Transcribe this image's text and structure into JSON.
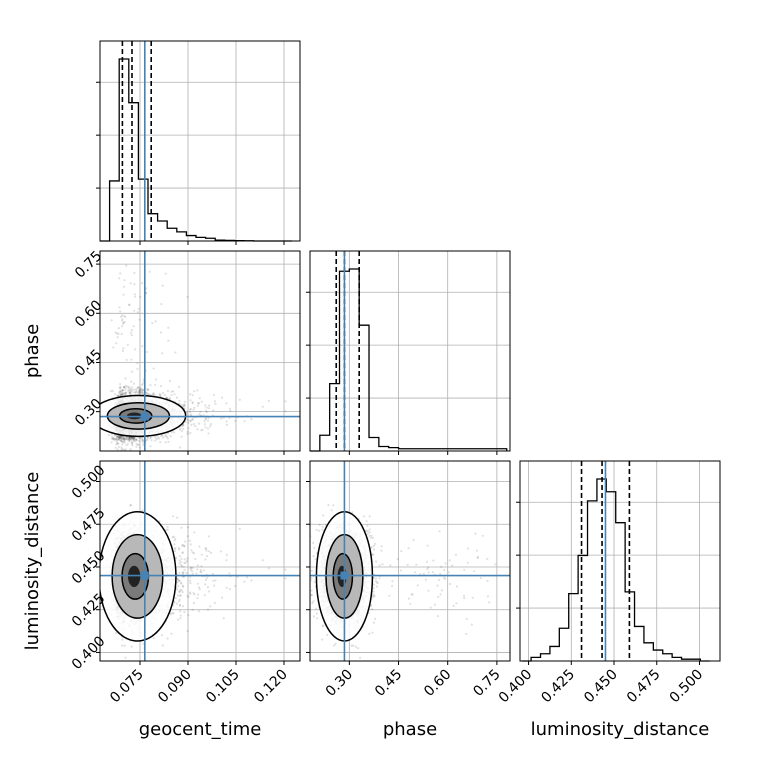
{
  "chart_data": {
    "type": "corner",
    "parameters": [
      "geocent_time",
      "phase",
      "luminosity_distance"
    ],
    "truths": {
      "geocent_time": 0.0765,
      "phase": 0.285,
      "luminosity_distance": 0.445
    },
    "quantiles": {
      "geocent_time": [
        0.0695,
        0.0725,
        0.0785
      ],
      "phase": [
        0.26,
        0.285,
        0.33
      ],
      "luminosity_distance": [
        0.431,
        0.443,
        0.459
      ]
    },
    "ranges": {
      "geocent_time": [
        0.0625,
        0.125
      ],
      "phase": [
        0.18,
        0.79
      ],
      "luminosity_distance": [
        0.395,
        0.512
      ]
    },
    "ticks": {
      "geocent_time": {
        "values": [
          0.075,
          0.09,
          0.105,
          0.12
        ],
        "labels": [
          "0.075",
          "0.090",
          "0.105",
          "0.120"
        ]
      },
      "phase": {
        "values": [
          0.3,
          0.45,
          0.6,
          0.75
        ],
        "labels": [
          "0.30",
          "0.45",
          "0.60",
          "0.75"
        ]
      },
      "luminosity_distance": {
        "values": [
          0.4,
          0.425,
          0.45,
          0.475,
          0.5
        ],
        "labels": [
          "0.400",
          "0.425",
          "0.450",
          "0.475",
          "0.500"
        ]
      }
    },
    "histograms": {
      "geocent_time": {
        "edges": [
          0.0625,
          0.0655,
          0.0685,
          0.0715,
          0.0745,
          0.0775,
          0.0805,
          0.0835,
          0.0865,
          0.0895,
          0.0925,
          0.0955,
          0.0985,
          0.1015,
          0.1045,
          0.1075,
          0.1105,
          0.1135,
          0.1165,
          0.1195,
          0.1225
        ],
        "counts": [
          0.0,
          0.33,
          1.0,
          0.76,
          0.34,
          0.15,
          0.11,
          0.07,
          0.05,
          0.03,
          0.02,
          0.015,
          0.005,
          0.003,
          0.002,
          0.001,
          0.0,
          0.0,
          0.0,
          0.0
        ]
      },
      "phase": {
        "edges": [
          0.18,
          0.21,
          0.24,
          0.27,
          0.3,
          0.33,
          0.36,
          0.39,
          0.42,
          0.45,
          0.48,
          0.51,
          0.54,
          0.57,
          0.6,
          0.63,
          0.66,
          0.69,
          0.72,
          0.75,
          0.78
        ],
        "counts": [
          0.0,
          0.07,
          0.3,
          0.8,
          0.81,
          0.56,
          0.06,
          0.02,
          0.015,
          0.01,
          0.01,
          0.01,
          0.01,
          0.01,
          0.01,
          0.01,
          0.01,
          0.01,
          0.01,
          0.01
        ]
      },
      "luminosity_distance": {
        "edges": [
          0.396,
          0.4015,
          0.407,
          0.4125,
          0.418,
          0.4235,
          0.429,
          0.4345,
          0.44,
          0.4455,
          0.451,
          0.4565,
          0.462,
          0.4675,
          0.473,
          0.4785,
          0.484,
          0.4895,
          0.495,
          0.5005,
          0.506
        ],
        "counts": [
          0.0,
          0.02,
          0.04,
          0.08,
          0.18,
          0.37,
          0.58,
          0.88,
          1.0,
          0.93,
          0.76,
          0.38,
          0.19,
          0.1,
          0.06,
          0.04,
          0.02,
          0.01,
          0.01,
          0.0
        ]
      }
    },
    "scatter_style": "gray points with filled density contours (levels ~0.39, 0.86, 0.99)",
    "truth_color": "#4682b4",
    "quantile_line_style": "black dashed",
    "grid": true
  }
}
